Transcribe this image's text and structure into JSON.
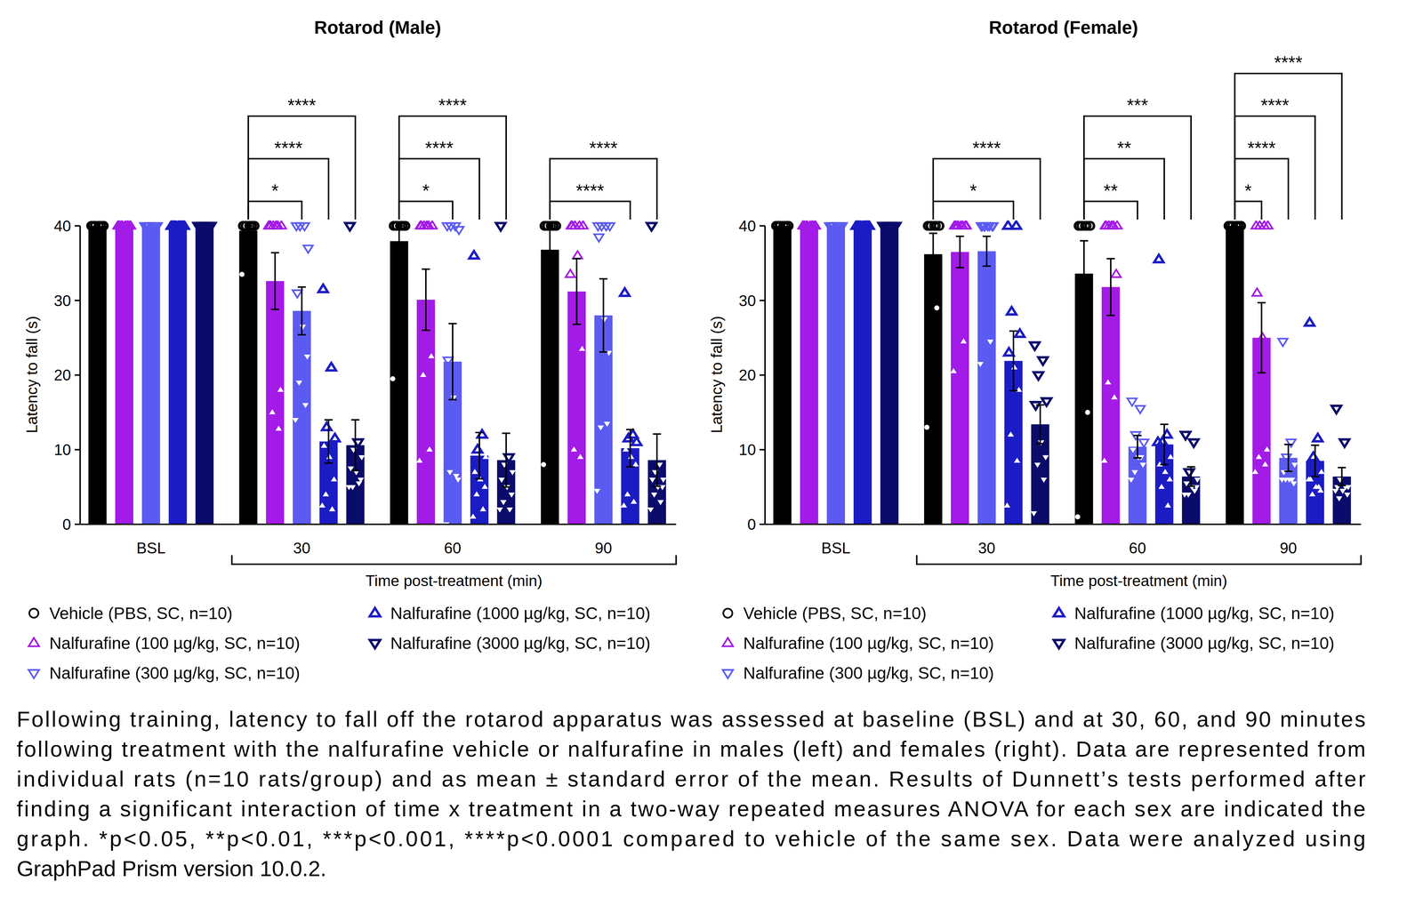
{
  "chart_data": [
    {
      "type": "bar",
      "title": "Rotarod (Male)",
      "y_label": "Latency to fall (s)",
      "x_label": "Time post-treatment (min)",
      "categories": [
        "BSL",
        "30",
        "60",
        "90"
      ],
      "ylim": [
        0,
        40
      ],
      "yticks": [
        0,
        10,
        20,
        30,
        40
      ],
      "series": [
        {
          "name": "Vehicle (PBS, SC, n=10)",
          "color": "#000000",
          "marker": "circle",
          "values": [
            40,
            39.35,
            37.95,
            36.8
          ],
          "errors": [
            0,
            0.65,
            2.05,
            3.2
          ],
          "points": [
            [
              40,
              40,
              40,
              40,
              40,
              40,
              40,
              40,
              40,
              40
            ],
            [
              40,
              40,
              40,
              40,
              40,
              40,
              40,
              40,
              40,
              33.5
            ],
            [
              40,
              40,
              40,
              40,
              40,
              40,
              40,
              40,
              40,
              19.5
            ],
            [
              40,
              40,
              40,
              40,
              40,
              40,
              40,
              40,
              40,
              8
            ]
          ]
        },
        {
          "name": "Nalfurafine (100 µg/kg, SC, n=10)",
          "color": "#a31be6",
          "marker": "triangle-up",
          "values": [
            40,
            32.6,
            30.1,
            31.2
          ],
          "errors": [
            0,
            3.8,
            4.1,
            4.4
          ],
          "points": [
            [
              40,
              40,
              40,
              40,
              40,
              40,
              40,
              40,
              40,
              40
            ],
            [
              40,
              40,
              40,
              40,
              40,
              40,
              18,
              15,
              12.8,
              40
            ],
            [
              40,
              40,
              40,
              40,
              40,
              40,
              22.5,
              20,
              10,
              8.5
            ],
            [
              40,
              40,
              40,
              40,
              40,
              36,
              23.5,
              10,
              9,
              33.5
            ]
          ]
        },
        {
          "name": "Nalfurafine (300 µg/kg, SC, n=10)",
          "color": "#5b5bf2",
          "marker": "triangle-down",
          "values": [
            40,
            28.6,
            21.8,
            28.0
          ],
          "errors": [
            0,
            3.2,
            5.1,
            4.9
          ],
          "points": [
            [
              40,
              40,
              40,
              40,
              40,
              40,
              40,
              40,
              40,
              40
            ],
            [
              40,
              40,
              40,
              37,
              31,
              26.5,
              22.5,
              19,
              16,
              14
            ],
            [
              40,
              40,
              40,
              39.5,
              22,
              17,
              6,
              7,
              6.5,
              0
            ],
            [
              40,
              40,
              40,
              40,
              38.5,
              27.5,
              23,
              13,
              13.5,
              4.5
            ]
          ]
        },
        {
          "name": "Nalfurafine (1000 µg/kg, SC, n=10)",
          "color": "#1c1cc4",
          "marker": "triangle-up",
          "values": [
            40,
            11.1,
            9.2,
            10.2
          ],
          "errors": [
            0,
            2.9,
            3.1,
            2.5
          ],
          "points": [
            [
              40,
              40,
              40,
              40,
              40,
              40,
              40,
              40,
              40,
              40
            ],
            [
              31.5,
              21,
              13,
              11.5,
              10.5,
              9,
              6,
              4,
              2,
              2.5
            ],
            [
              36,
              12,
              10,
              9,
              7,
              6,
              5,
              4,
              2,
              1
            ],
            [
              31,
              12,
              11.5,
              11,
              10,
              9,
              8,
              4,
              3,
              2.5
            ]
          ]
        },
        {
          "name": "Nalfurafine (3000 µg/kg, SC, n=10)",
          "color": "#0b0b6b",
          "marker": "triangle-down",
          "values": [
            40,
            10.6,
            8.6,
            8.6
          ],
          "errors": [
            0,
            3.4,
            3.6,
            3.5
          ],
          "points": [
            [
              40,
              40,
              40,
              40,
              40,
              40,
              40,
              40,
              40,
              40
            ],
            [
              40,
              11,
              10,
              9,
              7.5,
              7,
              6,
              5,
              5.5,
              5
            ],
            [
              40,
              9,
              8,
              7,
              6,
              5,
              4,
              3,
              2,
              2
            ],
            [
              40,
              8,
              7,
              6,
              6,
              5,
              5,
              4,
              3,
              2
            ]
          ]
        }
      ],
      "annotations": [
        {
          "category": 1,
          "series": 2,
          "text": "*"
        },
        {
          "category": 1,
          "series": 3,
          "text": "****"
        },
        {
          "category": 1,
          "series": 4,
          "text": "****"
        },
        {
          "category": 2,
          "series": 2,
          "text": "*"
        },
        {
          "category": 2,
          "series": 3,
          "text": "****"
        },
        {
          "category": 2,
          "series": 4,
          "text": "****"
        },
        {
          "category": 3,
          "series": 3,
          "text": "****"
        },
        {
          "category": 3,
          "series": 4,
          "text": "****"
        }
      ]
    },
    {
      "type": "bar",
      "title": "Rotarod (Female)",
      "y_label": "Latency to fall (s)",
      "x_label": "Time post-treatment (min)",
      "categories": [
        "BSL",
        "30",
        "60",
        "90"
      ],
      "ylim": [
        0,
        40
      ],
      "yticks": [
        0,
        10,
        20,
        30,
        40
      ],
      "series": [
        {
          "name": "Vehicle (PBS, SC, n=10)",
          "color": "#000000",
          "marker": "circle",
          "values": [
            40,
            36.2,
            33.6,
            40
          ],
          "errors": [
            0,
            2.8,
            4.4,
            0
          ],
          "points": [
            [
              40,
              40,
              40,
              40,
              40,
              40,
              40,
              40,
              40,
              40
            ],
            [
              40,
              40,
              40,
              40,
              40,
              40,
              40,
              40,
              29,
              13
            ],
            [
              40,
              40,
              40,
              40,
              40,
              40,
              40,
              40,
              15,
              1
            ],
            [
              40,
              40,
              40,
              40,
              40,
              40,
              40,
              40,
              40,
              40
            ]
          ]
        },
        {
          "name": "Nalfurafine (100 µg/kg, SC, n=10)",
          "color": "#a31be6",
          "marker": "triangle-up",
          "values": [
            40,
            36.5,
            31.8,
            25.0
          ],
          "errors": [
            0,
            2.1,
            3.8,
            4.7
          ],
          "points": [
            [
              40,
              40,
              40,
              40,
              40,
              40,
              40,
              40,
              40,
              40
            ],
            [
              40,
              40,
              40,
              40,
              40,
              40,
              40,
              40,
              24.5,
              20.5
            ],
            [
              40,
              40,
              40,
              40,
              40,
              40,
              33.5,
              19,
              17,
              8.5
            ],
            [
              40,
              40,
              40,
              40,
              31,
              25,
              10,
              9,
              8,
              7
            ]
          ]
        },
        {
          "name": "Nalfurafine (300 µg/kg, SC, n=10)",
          "color": "#5b5bf2",
          "marker": "triangle-down",
          "values": [
            40,
            36.6,
            10.4,
            8.9
          ],
          "errors": [
            0,
            2.0,
            1.5,
            1.8
          ],
          "points": [
            [
              40,
              40,
              40,
              40,
              40,
              40,
              40,
              40,
              40,
              40
            ],
            [
              40,
              40,
              40,
              40,
              40,
              40,
              40,
              40,
              24.5,
              21.5
            ],
            [
              16.5,
              15.5,
              12,
              11,
              10,
              9,
              8,
              7,
              9,
              6
            ],
            [
              24.5,
              11,
              9,
              8,
              7,
              6,
              5.5,
              6,
              6,
              6
            ]
          ]
        },
        {
          "name": "Nalfurafine (1000 µg/kg, SC, n=10)",
          "color": "#1c1cc4",
          "marker": "triangle-up",
          "values": [
            40,
            21.9,
            10.7,
            8.5
          ],
          "errors": [
            0,
            4.0,
            2.7,
            2.1
          ],
          "points": [
            [
              40,
              40,
              40,
              40,
              40,
              40,
              40,
              40,
              40,
              40
            ],
            [
              40,
              40,
              28.5,
              25.5,
              23,
              21,
              18,
              12,
              8.5,
              2.5
            ],
            [
              35.5,
              12,
              11,
              9,
              8,
              7,
              6,
              5,
              2.5,
              11
            ],
            [
              27,
              11.5,
              9,
              7,
              6,
              5,
              4.5,
              4,
              5,
              6
            ]
          ]
        },
        {
          "name": "Nalfurafine (3000 µg/kg, SC, n=10)",
          "color": "#0b0b6b",
          "marker": "triangle-down",
          "values": [
            40,
            13.4,
            6.4,
            6.4
          ],
          "errors": [
            0,
            2.6,
            1.3,
            1.2
          ],
          "points": [
            [
              40,
              40,
              40,
              40,
              40,
              40,
              40,
              40,
              40,
              40
            ],
            [
              24,
              22,
              20,
              16.5,
              16,
              11,
              9,
              8,
              6,
              1.5
            ],
            [
              12,
              11,
              7,
              6,
              5.5,
              5,
              5,
              4,
              4.5,
              4
            ],
            [
              15.5,
              11,
              6,
              5,
              5,
              4.5,
              4,
              3.5,
              5,
              4.5
            ]
          ]
        }
      ],
      "annotations": [
        {
          "category": 1,
          "series": 3,
          "text": "*"
        },
        {
          "category": 1,
          "series": 4,
          "text": "****"
        },
        {
          "category": 2,
          "series": 2,
          "text": "**"
        },
        {
          "category": 2,
          "series": 3,
          "text": "**"
        },
        {
          "category": 2,
          "series": 4,
          "text": "***"
        },
        {
          "category": 3,
          "series": 1,
          "text": "*"
        },
        {
          "category": 3,
          "series": 2,
          "text": "****"
        },
        {
          "category": 3,
          "series": 3,
          "text": "****"
        },
        {
          "category": 3,
          "series": 4,
          "text": "****"
        }
      ]
    }
  ],
  "caption": [
    "Following training, latency to fall off the rotarod apparatus was assessed at baseline (BSL) and at 30, 60, and 90 minutes",
    "following treatment with the nalfurafine vehicle or nalfurafine in males (left) and females (right). Data are represented from",
    "individual rats (n=10 rats/group) and as mean ± standard error of the mean. Results of Dunnett’s tests performed after",
    "finding a significant interaction of time x treatment in a two-way repeated measures ANOVA for each sex are indicated the",
    "graph. *p<0.05, **p<0.01, ***p<0.001, ****p<0.0001 compared to vehicle of the same sex. Data were analyzed using",
    "GraphPad Prism version 10.0.2."
  ]
}
